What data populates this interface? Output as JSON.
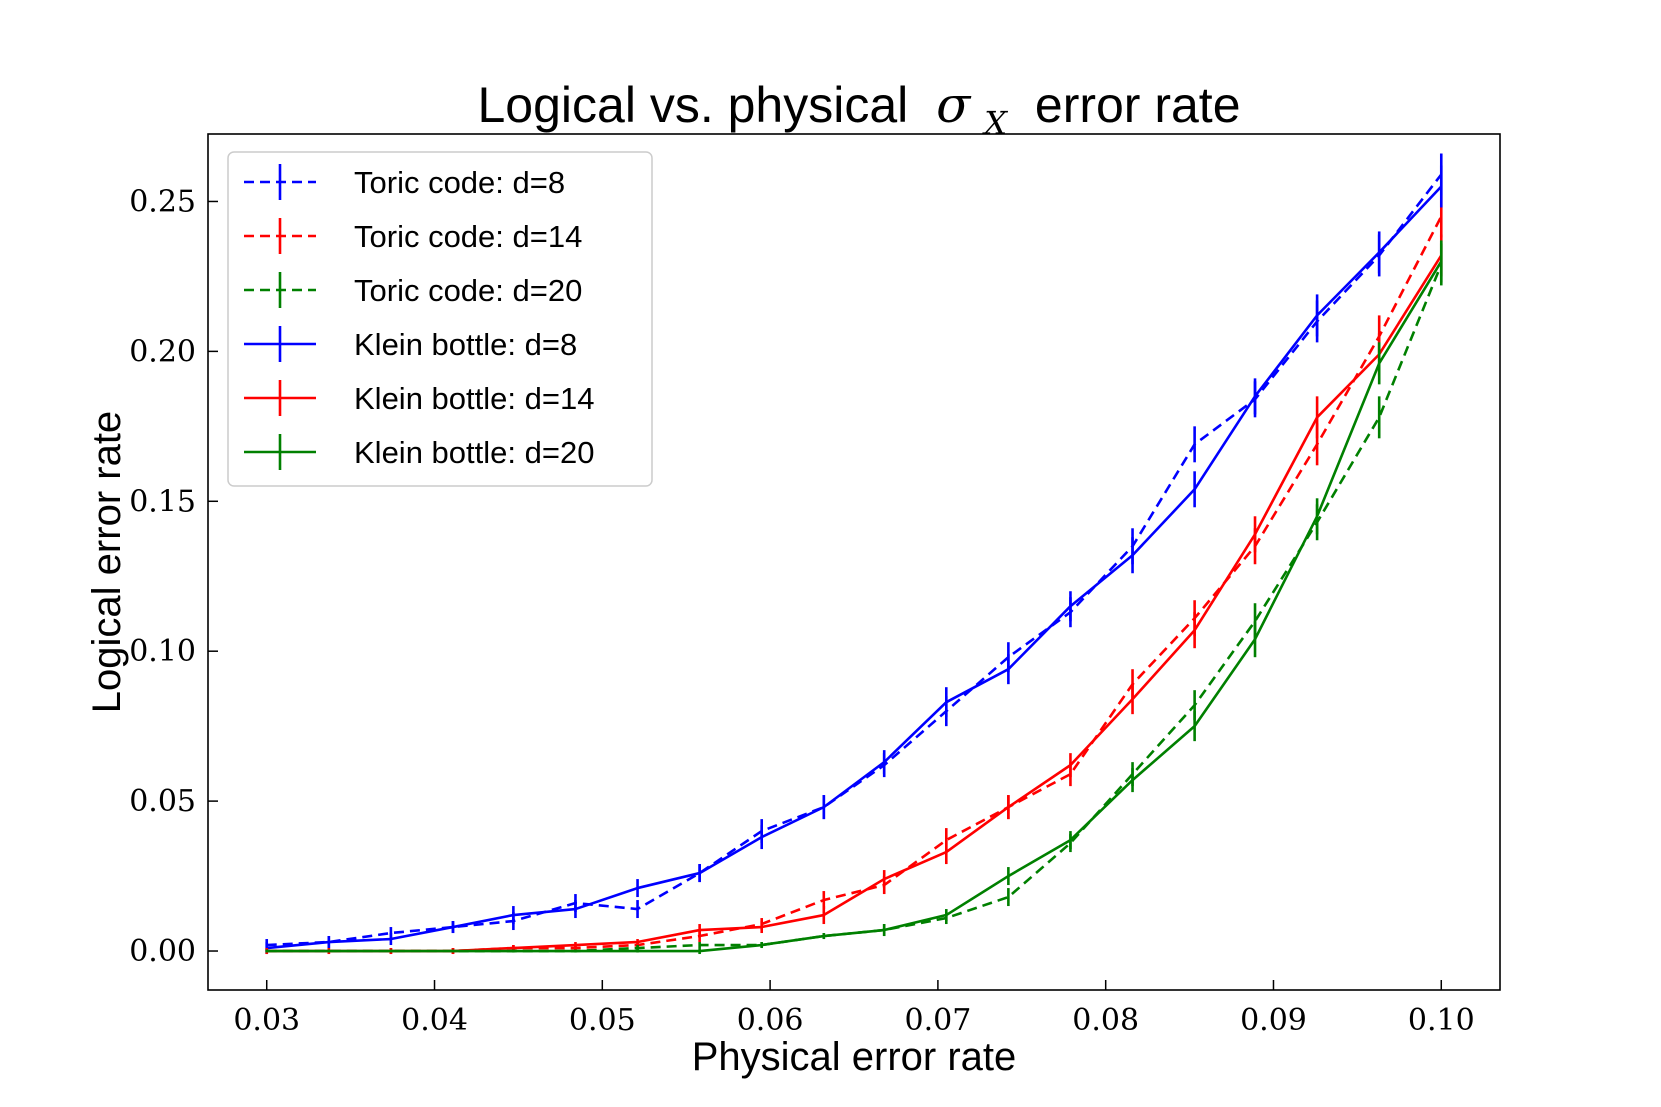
{
  "chart_data": {
    "type": "line",
    "title": "Logical vs. physical σX error rate",
    "title_parts": {
      "prefix": "Logical vs. physical",
      "symbol": "σ",
      "subscript": "X",
      "suffix": "error rate"
    },
    "xlabel": "Physical error rate",
    "ylabel": "Logical error rate",
    "xlim": [
      0.0265,
      0.1035
    ],
    "ylim": [
      -0.013,
      0.2725
    ],
    "x_ticks": [
      0.03,
      0.04,
      0.05,
      0.06,
      0.07,
      0.08,
      0.09,
      0.1
    ],
    "x_tick_labels": [
      "0.03",
      "0.04",
      "0.05",
      "0.06",
      "0.07",
      "0.08",
      "0.09",
      "0.10"
    ],
    "y_ticks": [
      0.0,
      0.05,
      0.1,
      0.15,
      0.2,
      0.25
    ],
    "y_tick_labels": [
      "0.00",
      "0.05",
      "0.10",
      "0.15",
      "0.20",
      "0.25"
    ],
    "grid": false,
    "legend_position": "upper-left",
    "x": [
      0.03,
      0.0337,
      0.0374,
      0.0411,
      0.0447,
      0.0484,
      0.0521,
      0.0558,
      0.0595,
      0.0632,
      0.0668,
      0.0705,
      0.0742,
      0.0779,
      0.0816,
      0.0853,
      0.0889,
      0.0926,
      0.0963,
      0.1
    ],
    "series": [
      {
        "name": "Toric code: d=8",
        "color": "#0000ff",
        "linestyle": "dashed",
        "values": [
          0.002,
          0.003,
          0.006,
          0.008,
          0.01,
          0.016,
          0.014,
          0.026,
          0.04,
          0.048,
          0.062,
          0.08,
          0.098,
          0.113,
          0.135,
          0.169,
          0.184,
          0.21,
          0.232,
          0.259
        ],
        "errors": [
          0.002,
          0.002,
          0.002,
          0.002,
          0.003,
          0.003,
          0.003,
          0.003,
          0.004,
          0.004,
          0.004,
          0.005,
          0.005,
          0.005,
          0.006,
          0.006,
          0.006,
          0.007,
          0.007,
          0.007
        ]
      },
      {
        "name": "Toric code: d=14",
        "color": "#ff0000",
        "linestyle": "dashed",
        "values": [
          0.0,
          0.0,
          0.0,
          0.0,
          0.001,
          0.001,
          0.002,
          0.005,
          0.009,
          0.017,
          0.022,
          0.037,
          0.048,
          0.059,
          0.089,
          0.111,
          0.135,
          0.169,
          0.205,
          0.245
        ],
        "errors": [
          0.001,
          0.001,
          0.001,
          0.001,
          0.001,
          0.001,
          0.001,
          0.002,
          0.002,
          0.003,
          0.003,
          0.004,
          0.004,
          0.004,
          0.005,
          0.006,
          0.006,
          0.007,
          0.007,
          0.007
        ]
      },
      {
        "name": "Toric code: d=20",
        "color": "#008000",
        "linestyle": "dashed",
        "values": [
          0.0,
          0.0,
          0.0,
          0.0,
          0.0,
          0.0,
          0.001,
          0.002,
          0.002,
          0.005,
          0.007,
          0.011,
          0.018,
          0.036,
          0.059,
          0.082,
          0.11,
          0.143,
          0.178,
          0.229
        ],
        "errors": [
          0.0005,
          0.0005,
          0.0005,
          0.0005,
          0.0005,
          0.0005,
          0.001,
          0.001,
          0.001,
          0.001,
          0.002,
          0.002,
          0.003,
          0.003,
          0.004,
          0.005,
          0.006,
          0.006,
          0.007,
          0.007
        ]
      },
      {
        "name": "Klein bottle: d=8",
        "color": "#0000ff",
        "linestyle": "solid",
        "values": [
          0.001,
          0.003,
          0.004,
          0.008,
          0.012,
          0.014,
          0.021,
          0.026,
          0.038,
          0.048,
          0.063,
          0.083,
          0.094,
          0.115,
          0.132,
          0.154,
          0.185,
          0.212,
          0.233,
          0.255
        ],
        "errors": [
          0.002,
          0.002,
          0.002,
          0.002,
          0.003,
          0.003,
          0.003,
          0.003,
          0.004,
          0.004,
          0.004,
          0.005,
          0.005,
          0.005,
          0.006,
          0.006,
          0.006,
          0.007,
          0.007,
          0.007
        ]
      },
      {
        "name": "Klein bottle: d=14",
        "color": "#ff0000",
        "linestyle": "solid",
        "values": [
          0.0,
          0.0,
          0.0,
          0.0,
          0.001,
          0.002,
          0.003,
          0.007,
          0.008,
          0.012,
          0.024,
          0.033,
          0.048,
          0.062,
          0.084,
          0.107,
          0.139,
          0.178,
          0.199,
          0.232
        ],
        "errors": [
          0.001,
          0.001,
          0.001,
          0.001,
          0.001,
          0.001,
          0.001,
          0.002,
          0.002,
          0.003,
          0.003,
          0.004,
          0.004,
          0.004,
          0.005,
          0.006,
          0.006,
          0.007,
          0.007,
          0.007
        ]
      },
      {
        "name": "Klein bottle: d=20",
        "color": "#008000",
        "linestyle": "solid",
        "values": [
          0.0,
          0.0,
          0.0,
          0.0,
          0.0,
          0.0,
          0.0,
          0.0,
          0.002,
          0.005,
          0.007,
          0.012,
          0.025,
          0.037,
          0.057,
          0.075,
          0.104,
          0.145,
          0.196,
          0.23
        ],
        "errors": [
          0.0005,
          0.0005,
          0.0005,
          0.0005,
          0.0005,
          0.0005,
          0.0005,
          0.001,
          0.001,
          0.001,
          0.002,
          0.002,
          0.003,
          0.003,
          0.004,
          0.005,
          0.006,
          0.006,
          0.007,
          0.007
        ]
      }
    ]
  }
}
